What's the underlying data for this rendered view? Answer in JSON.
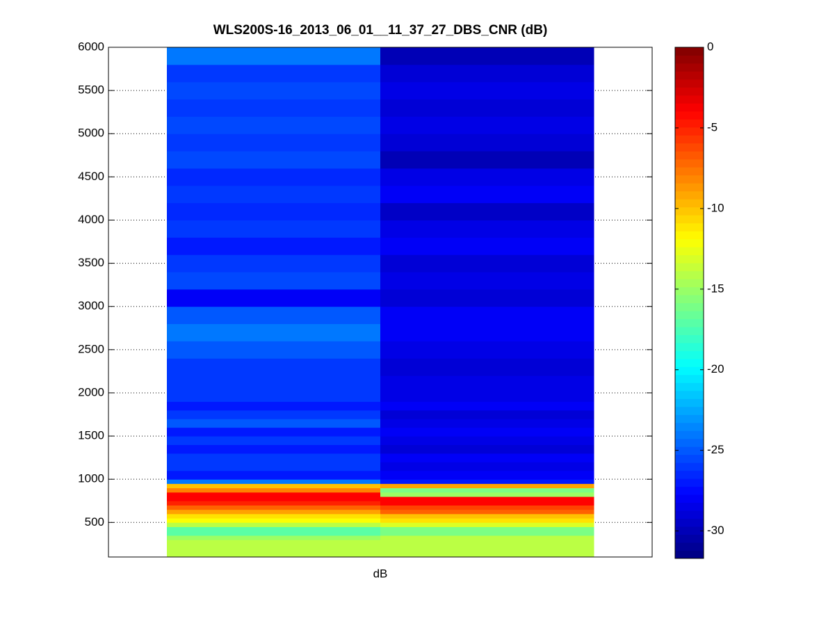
{
  "chart_data": {
    "type": "heatmap",
    "title": "WLS200S-16_2013_06_01__11_37_27_DBS_CNR (dB)",
    "x_label": "dB",
    "y_bins": [
      100,
      300,
      350,
      450,
      500,
      550,
      600,
      650,
      700,
      750,
      800,
      850,
      900,
      950,
      1000,
      1100,
      1200,
      1300,
      1400,
      1500,
      1600,
      1700,
      1800,
      1900,
      2000,
      2200,
      2400,
      2600,
      2800,
      3000,
      3200,
      3400,
      3600,
      3800,
      4000,
      4200,
      4400,
      4600,
      4800,
      5000,
      5200,
      5400,
      5600,
      5800,
      6000
    ],
    "series": [
      {
        "values": [
          -14,
          -15,
          -17,
          -14,
          -12,
          -11,
          -9,
          -7,
          -5,
          -4,
          -4,
          -8,
          -10,
          -24,
          -27,
          -26,
          -26,
          -27,
          -26,
          -27,
          -25,
          -26,
          -27,
          -26,
          -26,
          -26,
          -25,
          -24,
          -25,
          -28,
          -25.5,
          -26,
          -27,
          -26,
          -26.5,
          -26,
          -26.5,
          -25.5,
          -26,
          -25.5,
          -26,
          -25.5,
          -26,
          -24
        ]
      },
      {
        "values": [
          -14,
          -14,
          -16,
          -13,
          -11,
          -10,
          -7,
          -6,
          -4,
          -4,
          -15,
          -16,
          -9,
          -27,
          -28,
          -28.5,
          -28,
          -29,
          -28.5,
          -28,
          -28.5,
          -29,
          -28,
          -28.5,
          -28.5,
          -29,
          -28.5,
          -28,
          -28,
          -29,
          -28.5,
          -29,
          -28,
          -28.5,
          -29.5,
          -28,
          -28.5,
          -30,
          -29,
          -28.5,
          -29,
          -28.5,
          -29,
          -30
        ]
      }
    ],
    "ylim": [
      100,
      6000
    ],
    "yticks": [
      500,
      1000,
      1500,
      2000,
      2500,
      3000,
      3500,
      4000,
      4500,
      5000,
      5500,
      6000
    ],
    "clim": [
      -31.7,
      0
    ],
    "cticks": [
      0,
      -5,
      -10,
      -15,
      -20,
      -25,
      -30
    ],
    "colormap": "jet",
    "grid": true
  }
}
